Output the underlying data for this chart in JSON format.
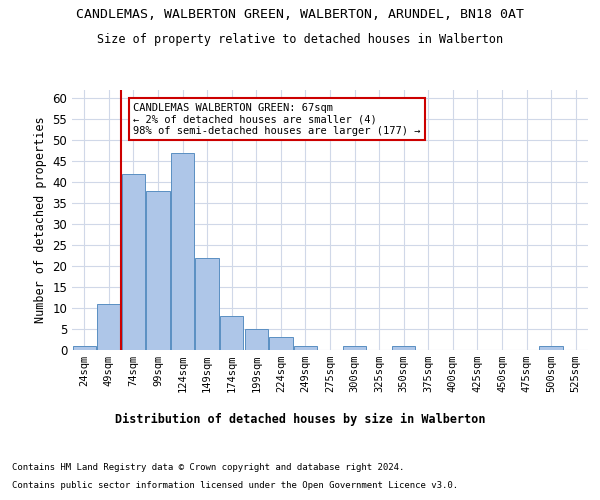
{
  "title": "CANDLEMAS, WALBERTON GREEN, WALBERTON, ARUNDEL, BN18 0AT",
  "subtitle": "Size of property relative to detached houses in Walberton",
  "xlabel": "Distribution of detached houses by size in Walberton",
  "ylabel": "Number of detached properties",
  "bar_color": "#aec6e8",
  "bar_edge_color": "#5a8fc2",
  "bins": [
    "24sqm",
    "49sqm",
    "74sqm",
    "99sqm",
    "124sqm",
    "149sqm",
    "174sqm",
    "199sqm",
    "224sqm",
    "249sqm",
    "275sqm",
    "300sqm",
    "325sqm",
    "350sqm",
    "375sqm",
    "400sqm",
    "425sqm",
    "450sqm",
    "475sqm",
    "500sqm",
    "525sqm"
  ],
  "values": [
    1,
    11,
    42,
    38,
    47,
    22,
    8,
    5,
    3,
    1,
    0,
    1,
    0,
    1,
    0,
    0,
    0,
    0,
    0,
    1,
    0
  ],
  "ylim": [
    0,
    62
  ],
  "yticks": [
    0,
    5,
    10,
    15,
    20,
    25,
    30,
    35,
    40,
    45,
    50,
    55,
    60
  ],
  "annotation_text": "CANDLEMAS WALBERTON GREEN: 67sqm\n← 2% of detached houses are smaller (4)\n98% of semi-detached houses are larger (177) →",
  "annotation_box_color": "#ffffff",
  "annotation_box_edge": "#cc0000",
  "property_line_color": "#cc0000",
  "grid_color": "#d0d8e8",
  "background_color": "#ffffff",
  "footer_line1": "Contains HM Land Registry data © Crown copyright and database right 2024.",
  "footer_line2": "Contains public sector information licensed under the Open Government Licence v3.0."
}
